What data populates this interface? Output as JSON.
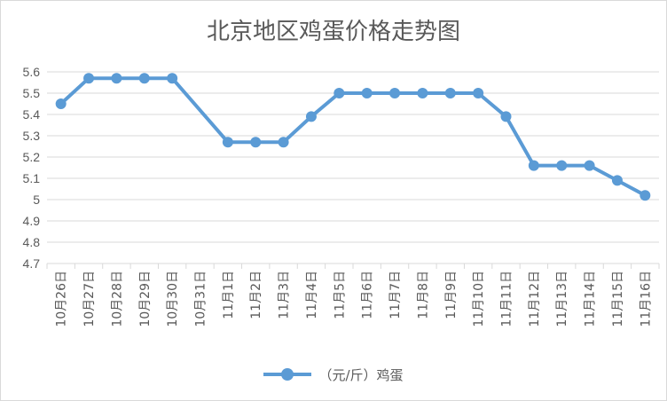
{
  "chart_data": {
    "type": "line",
    "title": "北京地区鸡蛋价格走势图",
    "categories": [
      "10月26日",
      "10月27日",
      "10月28日",
      "10月29日",
      "10月30日",
      "10月31日",
      "11月1日",
      "11月2日",
      "11月3日",
      "11月4日",
      "11月5日",
      "11月6日",
      "11月7日",
      "11月8日",
      "11月9日",
      "11月10日",
      "11月11日",
      "11月12日",
      "11月13日",
      "11月14日",
      "11月15日",
      "11月16日"
    ],
    "series": [
      {
        "name": "（元/斤）鸡蛋",
        "values": [
          5.45,
          5.57,
          5.57,
          5.57,
          5.57,
          null,
          5.27,
          5.27,
          5.27,
          5.39,
          5.5,
          5.5,
          5.5,
          5.5,
          5.5,
          5.5,
          5.39,
          5.16,
          5.16,
          5.16,
          5.09,
          5.02
        ],
        "color": "#5b9bd5"
      }
    ],
    "ylim": [
      4.7,
      5.6
    ],
    "yticks": [
      "5.6",
      "5.5",
      "5.4",
      "5.3",
      "5.2",
      "5.1",
      "5",
      "4.9",
      "4.8",
      "4.7"
    ],
    "grid": true,
    "legend_position": "bottom",
    "xlabel": "",
    "ylabel": ""
  }
}
